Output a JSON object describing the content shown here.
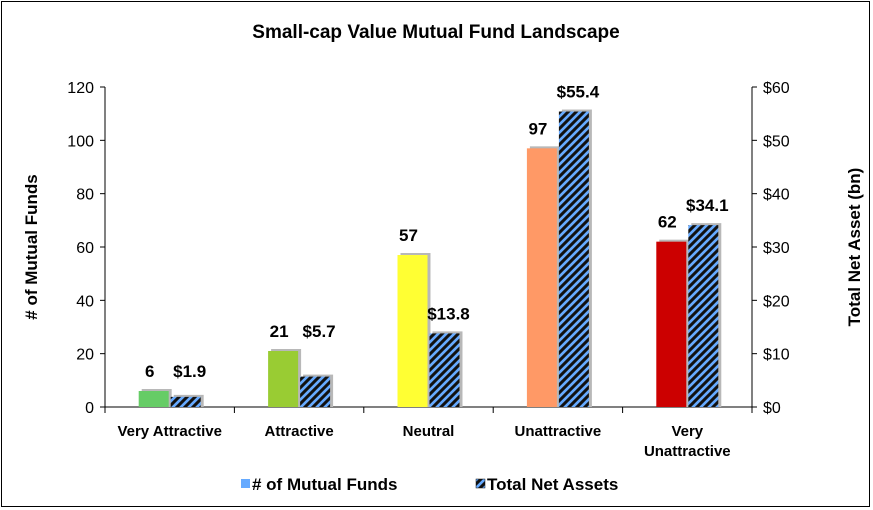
{
  "chart_data": {
    "type": "bar",
    "title": "Small-cap Value Mutual Fund Landscape",
    "categories": [
      [
        "Very Attractive"
      ],
      [
        "Attractive"
      ],
      [
        "Neutral"
      ],
      [
        "Unattractive"
      ],
      [
        "Very",
        "Unattractive"
      ]
    ],
    "series": [
      {
        "name": "# of Mutual Funds",
        "axis": "left",
        "values": [
          6,
          21,
          57,
          97,
          62
        ],
        "data_labels": [
          "6",
          "21",
          "57",
          "97",
          "62"
        ],
        "colors": [
          "#66cc66",
          "#99cc33",
          "#ffff33",
          "#ff9966",
          "#cc0000"
        ]
      },
      {
        "name": "Total Net Assets",
        "axis": "right",
        "values": [
          1.9,
          5.7,
          13.8,
          55.4,
          34.1
        ],
        "data_labels": [
          "$1.9",
          "$5.7",
          "$13.8",
          "$55.4",
          "$34.1"
        ],
        "fill": "hatched",
        "colors": [
          "#66aaff",
          "#111111"
        ]
      }
    ],
    "ylabel": "# of Mutual Funds",
    "ylabel_right": "Total Net Asset (bn)",
    "ylim": [
      0,
      120
    ],
    "yticks": [
      "0",
      "20",
      "40",
      "60",
      "80",
      "100",
      "120"
    ],
    "ylim_right": [
      0,
      60
    ],
    "yticks_right": [
      "$0",
      "$10",
      "$20",
      "$30",
      "$40",
      "$50",
      "$60"
    ],
    "legend_position": "bottom",
    "grid": false,
    "legend_swatch_colors": [
      "#66aaff",
      "#66aaff"
    ]
  }
}
